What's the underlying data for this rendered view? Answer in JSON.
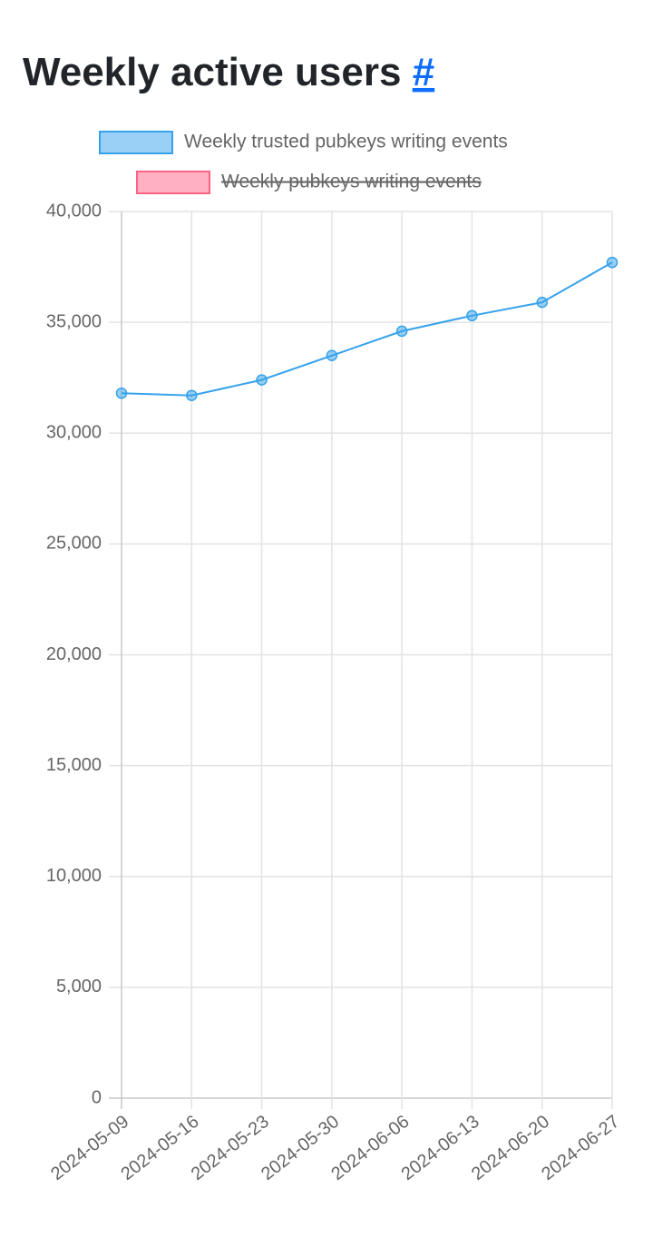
{
  "chart_data": {
    "type": "line",
    "title": "Weekly active users",
    "title_link": "#",
    "categories": [
      "2024-05-09",
      "2024-05-16",
      "2024-05-23",
      "2024-05-30",
      "2024-06-06",
      "2024-06-13",
      "2024-06-20",
      "2024-06-27"
    ],
    "series": [
      {
        "name": "Weekly trusted pubkeys writing events",
        "color": "#36a2eb",
        "hidden": false,
        "values": [
          31800,
          31700,
          32400,
          33500,
          34600,
          35300,
          35900,
          37700
        ]
      },
      {
        "name": "Weekly pubkeys writing events",
        "color": "#ff6384",
        "hidden": true,
        "values": [
          null,
          null,
          null,
          null,
          null,
          null,
          null,
          null
        ]
      }
    ],
    "ylim": [
      0,
      40000
    ],
    "yticks": [
      0,
      {
        "value": 5000,
        "label": "5,000"
      },
      {
        "value": 10000,
        "label": "10,000"
      },
      {
        "value": 15000,
        "label": "15,000"
      },
      {
        "value": 20000,
        "label": "20,000"
      },
      {
        "value": 25000,
        "label": "25,000"
      },
      {
        "value": 30000,
        "label": "30,000"
      },
      {
        "value": 35000,
        "label": "35,000"
      },
      {
        "value": 40000,
        "label": "40,000"
      }
    ],
    "grid": true
  }
}
